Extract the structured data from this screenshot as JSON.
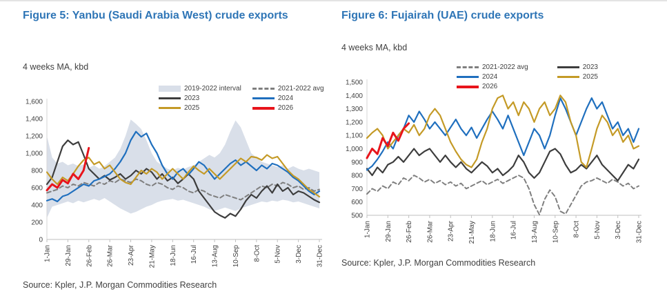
{
  "chart_data": [
    {
      "type": "line",
      "title": "Figure 5: Yanbu (Saudi Arabia West) crude exports",
      "subtitle": "4 weeks MA, kbd",
      "source": "Source: Kpler, J.P. Morgan Commodities Research",
      "x_ticks": [
        "1-Jan",
        "29-Jan",
        "26-Feb",
        "26-Mar",
        "23-Apr",
        "21-May",
        "18-Jun",
        "16-Jul",
        "13-Aug",
        "10-Sep",
        "8-Oct",
        "5-Nov",
        "3-Dec",
        "31-Dec"
      ],
      "points": 53,
      "ylim": [
        0,
        1600
      ],
      "y_ticks": [
        0,
        200,
        400,
        600,
        800,
        1000,
        1200,
        1400,
        1600
      ],
      "grid": false,
      "legend_position": "top-right",
      "band": {
        "name": "2019-2022 interval",
        "color": "#d9dfe9",
        "lower": [
          250,
          380,
          400,
          420,
          440,
          420,
          450,
          430,
          450,
          470,
          450,
          480,
          440,
          400,
          360,
          330,
          300,
          320,
          350,
          380,
          400,
          430,
          450,
          460,
          470,
          450,
          460,
          440,
          420,
          400,
          380,
          350,
          330,
          350,
          370,
          350,
          330,
          360,
          380,
          400,
          420,
          440,
          430,
          450,
          440,
          460,
          450,
          430,
          440,
          420,
          400,
          380,
          360
        ],
        "upper": [
          1200,
          950,
          880,
          900,
          860,
          880,
          850,
          870,
          830,
          860,
          820,
          850,
          900,
          950,
          1050,
          1200,
          1390,
          1340,
          1280,
          1150,
          1000,
          900,
          860,
          820,
          800,
          830,
          810,
          840,
          860,
          900,
          940,
          980,
          950,
          1000,
          1100,
          1250,
          1380,
          1300,
          1150,
          1000,
          950,
          900,
          880,
          860,
          840,
          860,
          820,
          850,
          820,
          800,
          820,
          800,
          780
        ]
      },
      "series": [
        {
          "name": "2021-2022 avg",
          "color": "#7f7f7f",
          "style": "dashed",
          "width": 2,
          "values": [
            540,
            560,
            580,
            620,
            600,
            640,
            620,
            660,
            640,
            620,
            660,
            640,
            680,
            660,
            700,
            680,
            660,
            700,
            680,
            640,
            620,
            660,
            640,
            600,
            580,
            620,
            600,
            560,
            540,
            580,
            560,
            520,
            500,
            480,
            520,
            500,
            480,
            460,
            500,
            540,
            580,
            620,
            600,
            640,
            620,
            660,
            640,
            600,
            620,
            580,
            600,
            560,
            580
          ]
        },
        {
          "name": "2023",
          "color": "#3d3d3d",
          "style": "solid",
          "width": 2.2,
          "values": [
            640,
            720,
            900,
            1080,
            1150,
            1100,
            1130,
            980,
            820,
            760,
            700,
            740,
            690,
            720,
            760,
            700,
            740,
            800,
            760,
            820,
            780,
            700,
            760,
            680,
            720,
            650,
            700,
            760,
            700,
            560,
            480,
            400,
            320,
            280,
            250,
            300,
            270,
            350,
            450,
            520,
            480,
            560,
            620,
            540,
            640,
            560,
            600,
            520,
            560,
            540,
            500,
            460,
            430
          ]
        },
        {
          "name": "2024",
          "color": "#1f6fbe",
          "style": "solid",
          "width": 2.2,
          "values": [
            450,
            470,
            440,
            500,
            520,
            560,
            600,
            640,
            620,
            680,
            700,
            730,
            760,
            820,
            900,
            1000,
            1150,
            1250,
            1190,
            1230,
            1100,
            1000,
            860,
            760,
            700,
            780,
            820,
            750,
            820,
            900,
            860,
            780,
            700,
            760,
            820,
            880,
            920,
            860,
            900,
            850,
            800,
            860,
            820,
            880,
            860,
            820,
            780,
            720,
            680,
            620,
            560,
            520,
            560
          ]
        },
        {
          "name": "2025",
          "color": "#c49a26",
          "style": "solid",
          "width": 2.2,
          "values": [
            780,
            700,
            640,
            720,
            680,
            760,
            850,
            920,
            950,
            870,
            900,
            820,
            860,
            780,
            700,
            660,
            640,
            720,
            800,
            760,
            820,
            780,
            700,
            760,
            820,
            760,
            700,
            780,
            850,
            800,
            760,
            820,
            760,
            700,
            760,
            820,
            880,
            940,
            900,
            960,
            950,
            920,
            980,
            940,
            960,
            880,
            800,
            740,
            700,
            640,
            580,
            540,
            495
          ]
        },
        {
          "name": "2026",
          "color": "#e8141b",
          "style": "solid",
          "width": 3,
          "values": [
            570,
            640,
            600,
            690,
            650,
            760,
            700,
            800,
            1060
          ]
        }
      ],
      "legend": [
        {
          "label": "2019-2022 interval",
          "swatch": "band",
          "color": "#d9dfe9"
        },
        {
          "label": "2021-2022 avg",
          "swatch": "dashed",
          "color": "#7f7f7f"
        },
        {
          "label": "2023",
          "swatch": "line",
          "color": "#3d3d3d"
        },
        {
          "label": "2024",
          "swatch": "line",
          "color": "#1f6fbe"
        },
        {
          "label": "2025",
          "swatch": "line",
          "color": "#c49a26"
        },
        {
          "label": "2026",
          "swatch": "thick",
          "color": "#e8141b"
        }
      ]
    },
    {
      "type": "line",
      "title": "Figure 6: Fujairah (UAE) crude exports",
      "subtitle": "4 weeks MA, kbd",
      "source": "Source: Kpler, J.P. Morgan Commodities Research",
      "x_ticks": [
        "1-Jan",
        "29-Jan",
        "26-Feb",
        "26-Mar",
        "23-Apr",
        "21-May",
        "18-Jun",
        "16-Jul",
        "13-Aug",
        "10-Sep",
        "8-Oct",
        "5-Nov",
        "3-Dec",
        "31-Dec"
      ],
      "points": 53,
      "ylim": [
        500,
        1500
      ],
      "y_ticks": [
        500,
        600,
        700,
        800,
        900,
        1000,
        1100,
        1200,
        1300,
        1400,
        1500
      ],
      "grid": false,
      "legend_position": "top-center",
      "series": [
        {
          "name": "2021-2022 avg",
          "color": "#7f7f7f",
          "style": "dashed",
          "width": 2,
          "values": [
            660,
            700,
            680,
            720,
            700,
            750,
            730,
            780,
            760,
            800,
            780,
            750,
            770,
            740,
            760,
            730,
            750,
            720,
            740,
            700,
            720,
            740,
            760,
            730,
            750,
            770,
            740,
            760,
            780,
            800,
            780,
            700,
            580,
            505,
            620,
            690,
            640,
            530,
            510,
            580,
            650,
            720,
            750,
            760,
            780,
            760,
            740,
            770,
            750,
            720,
            740,
            700,
            720
          ]
        },
        {
          "name": "2023",
          "color": "#3d3d3d",
          "style": "solid",
          "width": 2.2,
          "values": [
            850,
            800,
            860,
            820,
            880,
            900,
            940,
            900,
            950,
            1000,
            950,
            980,
            1000,
            950,
            900,
            950,
            900,
            860,
            900,
            850,
            820,
            860,
            900,
            870,
            820,
            850,
            800,
            830,
            870,
            950,
            900,
            820,
            780,
            820,
            900,
            980,
            1000,
            960,
            880,
            820,
            840,
            880,
            850,
            900,
            950,
            880,
            840,
            800,
            760,
            820,
            880,
            850,
            920
          ]
        },
        {
          "name": "2024",
          "color": "#1f6fbe",
          "style": "solid",
          "width": 2.2,
          "values": [
            840,
            870,
            920,
            980,
            1050,
            1000,
            1100,
            1150,
            1250,
            1200,
            1280,
            1220,
            1150,
            1200,
            1150,
            1100,
            1160,
            1220,
            1150,
            1100,
            1160,
            1080,
            1150,
            1220,
            1280,
            1220,
            1150,
            1250,
            1150,
            1050,
            950,
            1050,
            1150,
            1100,
            1000,
            1100,
            1250,
            1380,
            1300,
            1200,
            1100,
            1200,
            1300,
            1380,
            1300,
            1350,
            1250,
            1150,
            1200,
            1100,
            1150,
            1050,
            1150
          ]
        },
        {
          "name": "2025",
          "color": "#c49a26",
          "style": "solid",
          "width": 2.2,
          "values": [
            1080,
            1120,
            1150,
            1100,
            1000,
            1050,
            1100,
            1150,
            1120,
            1180,
            1100,
            1150,
            1250,
            1300,
            1250,
            1150,
            1050,
            980,
            920,
            880,
            860,
            920,
            1050,
            1150,
            1300,
            1380,
            1400,
            1300,
            1350,
            1250,
            1350,
            1300,
            1200,
            1300,
            1350,
            1250,
            1300,
            1400,
            1350,
            1200,
            1100,
            900,
            860,
            1000,
            1150,
            1250,
            1200,
            1100,
            1150,
            1050,
            1100,
            1000,
            1020
          ]
        },
        {
          "name": "2026",
          "color": "#e8141b",
          "style": "solid",
          "width": 3,
          "values": [
            930,
            1000,
            960,
            1080,
            1020,
            1120,
            1060,
            1150,
            1190
          ]
        }
      ],
      "legend": [
        {
          "label": "2021-2022 avg",
          "swatch": "dashed",
          "color": "#7f7f7f"
        },
        {
          "label": "2023",
          "swatch": "line",
          "color": "#3d3d3d"
        },
        {
          "label": "2024",
          "swatch": "line",
          "color": "#1f6fbe"
        },
        {
          "label": "2025",
          "swatch": "line",
          "color": "#c49a26"
        },
        {
          "label": "2026",
          "swatch": "thick",
          "color": "#e8141b"
        }
      ]
    }
  ],
  "colors": {
    "title_blue": "#2e75b6",
    "text": "#404040",
    "axis": "#bfbfbf",
    "band": "#d9dfe9"
  }
}
